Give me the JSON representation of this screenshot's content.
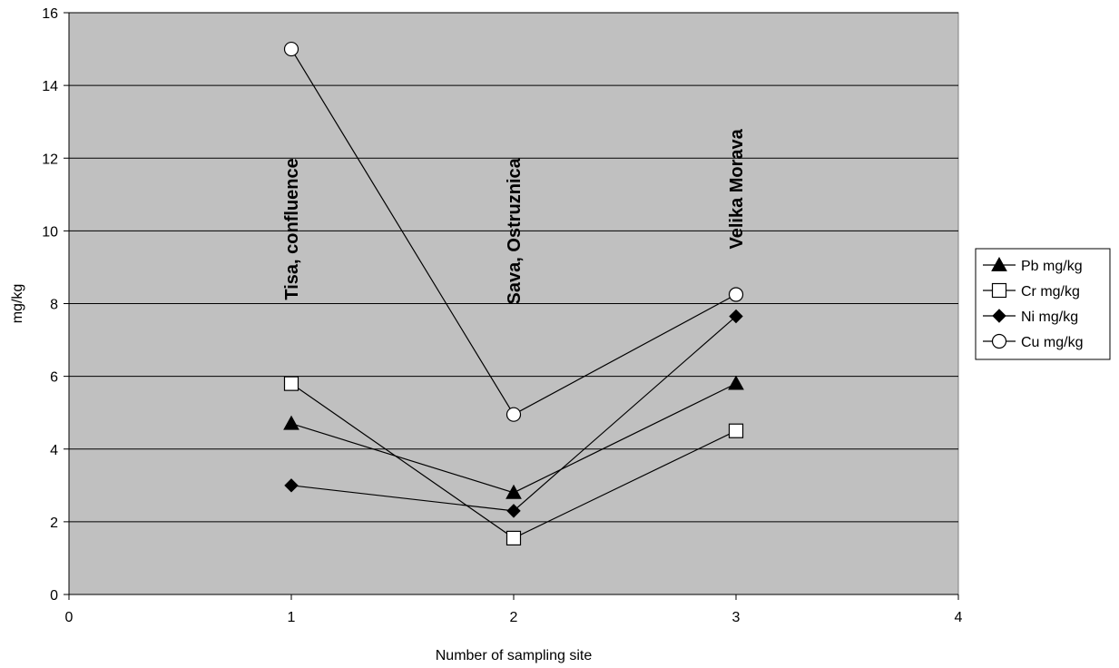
{
  "chart_data": {
    "type": "line",
    "xlabel": "Number of sampling site",
    "ylabel": "mg/kg",
    "xlim": [
      0,
      4
    ],
    "ylim": [
      0,
      16
    ],
    "x_ticks": [
      0,
      1,
      2,
      3,
      4
    ],
    "y_ticks": [
      0,
      2,
      4,
      6,
      8,
      10,
      12,
      14,
      16
    ],
    "grid": "horizontal",
    "plot_background": "#c0c0c0",
    "legend_position": "right",
    "x": [
      1,
      2,
      3
    ],
    "series": [
      {
        "name": "Pb mg/kg",
        "marker": "triangle-filled",
        "values": [
          4.7,
          2.8,
          5.8
        ]
      },
      {
        "name": "Cr mg/kg",
        "marker": "square-open",
        "values": [
          5.8,
          1.55,
          4.5
        ]
      },
      {
        "name": "Ni mg/kg",
        "marker": "diamond-filled",
        "values": [
          3.0,
          2.3,
          7.65
        ]
      },
      {
        "name": "Cu mg/kg",
        "marker": "circle-open",
        "values": [
          15.0,
          4.95,
          8.25
        ]
      }
    ],
    "annotations": [
      {
        "text": "Tisa, confluence",
        "x": 1,
        "y": 12
      },
      {
        "text": "Sava, Ostruznica",
        "x": 2,
        "y": 12
      },
      {
        "text": "Velika Morava",
        "x": 3,
        "y": 12.8
      }
    ]
  }
}
